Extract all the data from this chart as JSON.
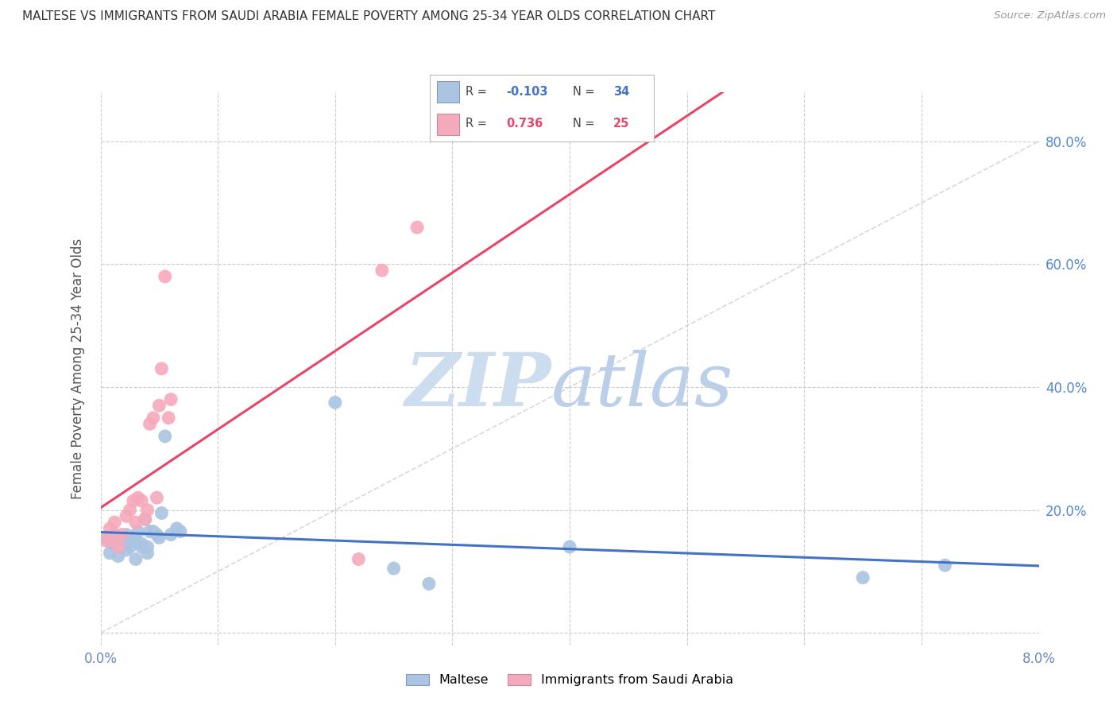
{
  "title": "MALTESE VS IMMIGRANTS FROM SAUDI ARABIA FEMALE POVERTY AMONG 25-34 YEAR OLDS CORRELATION CHART",
  "source": "Source: ZipAtlas.com",
  "ylabel": "Female Poverty Among 25-34 Year Olds",
  "xlim": [
    0.0,
    0.08
  ],
  "ylim": [
    -0.02,
    0.88
  ],
  "blue_R": -0.103,
  "blue_N": 34,
  "pink_R": 0.736,
  "pink_N": 25,
  "maltese_color": "#aac4e2",
  "saudi_color": "#f5aabb",
  "line_blue": "#4472c4",
  "line_pink": "#e8456a",
  "line_diag_color": "#c8c8c8",
  "background_color": "#ffffff",
  "legend_label_blue": "Maltese",
  "legend_label_pink": "Immigrants from Saudi Arabia",
  "maltese_x": [
    0.0005,
    0.0008,
    0.001,
    0.0012,
    0.0015,
    0.0018,
    0.002,
    0.0022,
    0.0022,
    0.0025,
    0.0028,
    0.003,
    0.003,
    0.0032,
    0.0035,
    0.0035,
    0.0038,
    0.004,
    0.004,
    0.0042,
    0.0045,
    0.0048,
    0.005,
    0.0052,
    0.0055,
    0.006,
    0.0065,
    0.0068,
    0.02,
    0.025,
    0.028,
    0.04,
    0.065,
    0.072
  ],
  "maltese_y": [
    0.155,
    0.13,
    0.145,
    0.16,
    0.125,
    0.155,
    0.15,
    0.16,
    0.135,
    0.14,
    0.155,
    0.12,
    0.15,
    0.165,
    0.14,
    0.145,
    0.185,
    0.14,
    0.13,
    0.165,
    0.165,
    0.16,
    0.155,
    0.195,
    0.32,
    0.16,
    0.17,
    0.165,
    0.375,
    0.105,
    0.08,
    0.14,
    0.09,
    0.11
  ],
  "saudi_x": [
    0.0005,
    0.0008,
    0.001,
    0.0012,
    0.0015,
    0.0018,
    0.0022,
    0.0025,
    0.0028,
    0.003,
    0.0032,
    0.0035,
    0.0038,
    0.004,
    0.0042,
    0.0045,
    0.0048,
    0.005,
    0.0052,
    0.0055,
    0.0058,
    0.006,
    0.022,
    0.024,
    0.027
  ],
  "saudi_y": [
    0.15,
    0.17,
    0.155,
    0.18,
    0.14,
    0.16,
    0.19,
    0.2,
    0.215,
    0.18,
    0.22,
    0.215,
    0.185,
    0.2,
    0.34,
    0.35,
    0.22,
    0.37,
    0.43,
    0.58,
    0.35,
    0.38,
    0.12,
    0.59,
    0.66
  ]
}
